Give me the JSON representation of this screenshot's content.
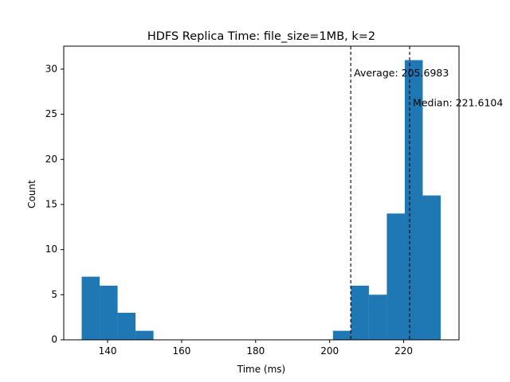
{
  "chart_data": {
    "type": "bar",
    "title": "HDFS Replica Time: file_size=1MB, k=2",
    "xlabel": "Time (ms)",
    "ylabel": "Count",
    "xlim": [
      128.15,
      234.95
    ],
    "ylim": [
      0,
      32.55
    ],
    "xticks": [
      140,
      160,
      180,
      200,
      220
    ],
    "yticks": [
      0,
      5,
      10,
      15,
      20,
      25,
      30
    ],
    "grid": false,
    "color": "#1f77b4",
    "bins": [
      {
        "x0": 133.0,
        "x1": 137.85,
        "count": 7
      },
      {
        "x0": 137.85,
        "x1": 142.7,
        "count": 6
      },
      {
        "x0": 142.7,
        "x1": 147.55,
        "count": 3
      },
      {
        "x0": 147.55,
        "x1": 152.4,
        "count": 1
      },
      {
        "x0": 152.4,
        "x1": 157.25,
        "count": 0
      },
      {
        "x0": 157.25,
        "x1": 162.1,
        "count": 0
      },
      {
        "x0": 162.1,
        "x1": 166.95,
        "count": 0
      },
      {
        "x0": 166.95,
        "x1": 171.8,
        "count": 0
      },
      {
        "x0": 171.8,
        "x1": 176.65,
        "count": 0
      },
      {
        "x0": 176.65,
        "x1": 181.5,
        "count": 0
      },
      {
        "x0": 181.5,
        "x1": 186.35,
        "count": 0
      },
      {
        "x0": 186.35,
        "x1": 191.2,
        "count": 0
      },
      {
        "x0": 191.2,
        "x1": 196.05,
        "count": 0
      },
      {
        "x0": 196.05,
        "x1": 200.9,
        "count": 0
      },
      {
        "x0": 200.9,
        "x1": 205.75,
        "count": 1
      },
      {
        "x0": 205.75,
        "x1": 210.6,
        "count": 6
      },
      {
        "x0": 210.6,
        "x1": 215.45,
        "count": 5
      },
      {
        "x0": 215.45,
        "x1": 220.3,
        "count": 14
      },
      {
        "x0": 220.3,
        "x1": 225.15,
        "count": 31
      },
      {
        "x0": 225.15,
        "x1": 230.0,
        "count": 16
      }
    ],
    "annotations": [
      {
        "label": "Average: 205.6983",
        "x": 205.6983,
        "y": 29.5
      },
      {
        "label": "Median: 221.6104",
        "x": 221.6104,
        "y": 26.2
      }
    ]
  }
}
